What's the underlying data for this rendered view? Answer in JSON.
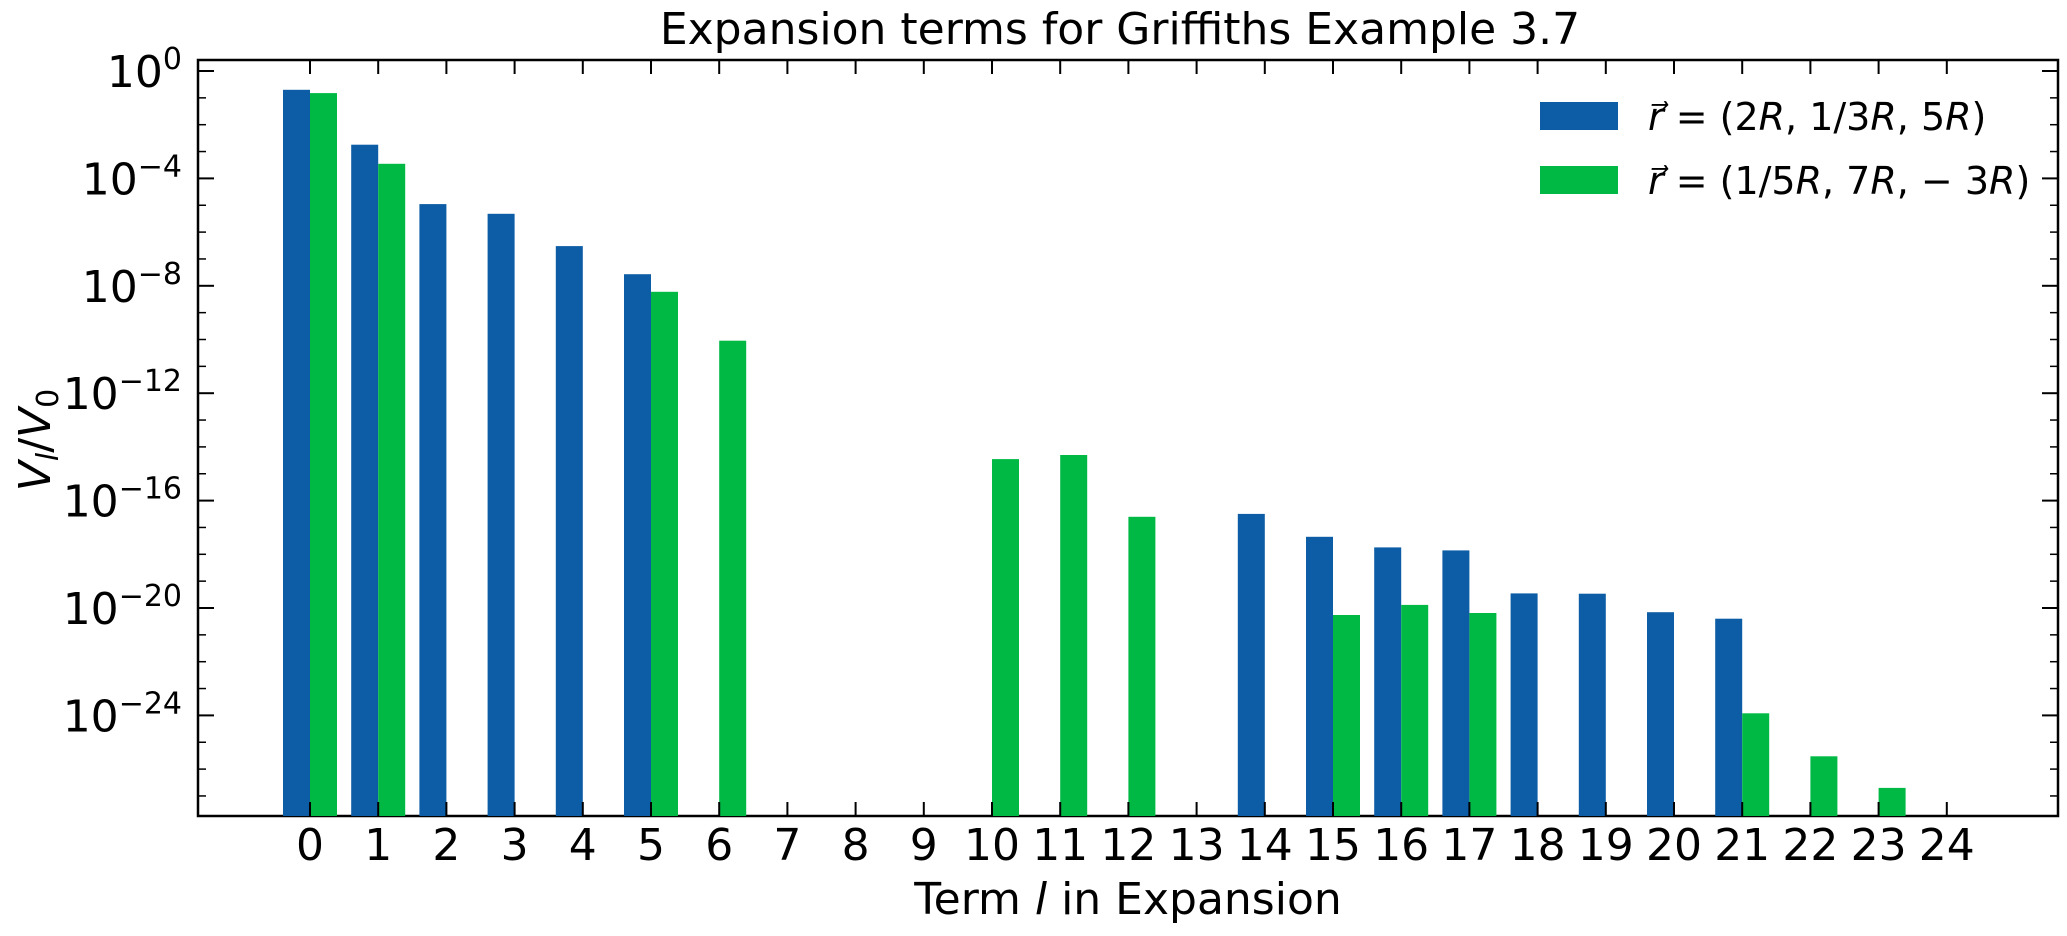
{
  "chart_data": {
    "type": "bar",
    "title": "Expansion terms for Griffiths Example 3.7",
    "xlabel": "Term l in Expansion",
    "ylabel": "V_l/V_0",
    "yscale": "log",
    "ylim": [
      1e-28,
      1.0
    ],
    "grid": false,
    "legend_position": "top-right",
    "categories": [
      "0",
      "1",
      "2",
      "3",
      "4",
      "5",
      "6",
      "7",
      "8",
      "9",
      "10",
      "11",
      "12",
      "13",
      "14",
      "15",
      "16",
      "17",
      "18",
      "19",
      "20",
      "21",
      "22",
      "23",
      "24"
    ],
    "y_ticks": [
      {
        "base": "10",
        "exp": "0",
        "value": 1.0
      },
      {
        "base": "10",
        "exp": "−4",
        "value": 0.0001
      },
      {
        "base": "10",
        "exp": "−8",
        "value": 1e-08
      },
      {
        "base": "10",
        "exp": "−12",
        "value": 1e-12
      },
      {
        "base": "10",
        "exp": "−16",
        "value": 1e-16
      },
      {
        "base": "10",
        "exp": "−20",
        "value": 1e-20
      },
      {
        "base": "10",
        "exp": "−24",
        "value": 1e-24
      }
    ],
    "series": [
      {
        "name": "r⃗ = (2R, 1/3R, 5R)",
        "color": "#0c5da5",
        "values": [
          0.2,
          0.0018,
          1.1e-05,
          4.8e-06,
          3e-07,
          2.7e-08,
          null,
          null,
          null,
          null,
          null,
          null,
          null,
          null,
          3.2e-17,
          4.5e-18,
          1.8e-18,
          1.4e-18,
          3.5e-20,
          3.4e-20,
          7e-21,
          4e-21,
          null,
          null,
          null
        ]
      },
      {
        "name": "r⃗ = (1/5R, 7R, −3R)",
        "color": "#00b945",
        "values": [
          0.15,
          0.00035,
          null,
          null,
          null,
          6e-09,
          9e-11,
          null,
          null,
          null,
          3.5e-15,
          5e-15,
          2.5e-17,
          null,
          null,
          5.5e-21,
          1.3e-20,
          6.5e-21,
          null,
          null,
          null,
          1.2e-24,
          3e-26,
          2e-27,
          null
        ]
      }
    ]
  },
  "title_text": "Expansion terms for Griffiths Example 3.7",
  "xlabel_parts": {
    "pre": "Term ",
    "var": "l",
    "post": " in Expansion"
  },
  "ylabel_parts": {
    "v": "V",
    "sub_l": "l",
    "slash": "/",
    "v0": "V",
    "sub_0": "0"
  },
  "legend": [
    {
      "prefix": "(2",
      "r": "R",
      "a": ", 1/3",
      "b": ", 5",
      "close": ")"
    },
    {
      "prefix": "(1/5",
      "r": "R",
      "a": ", 7",
      "b": ", − 3",
      "close": ")"
    }
  ]
}
